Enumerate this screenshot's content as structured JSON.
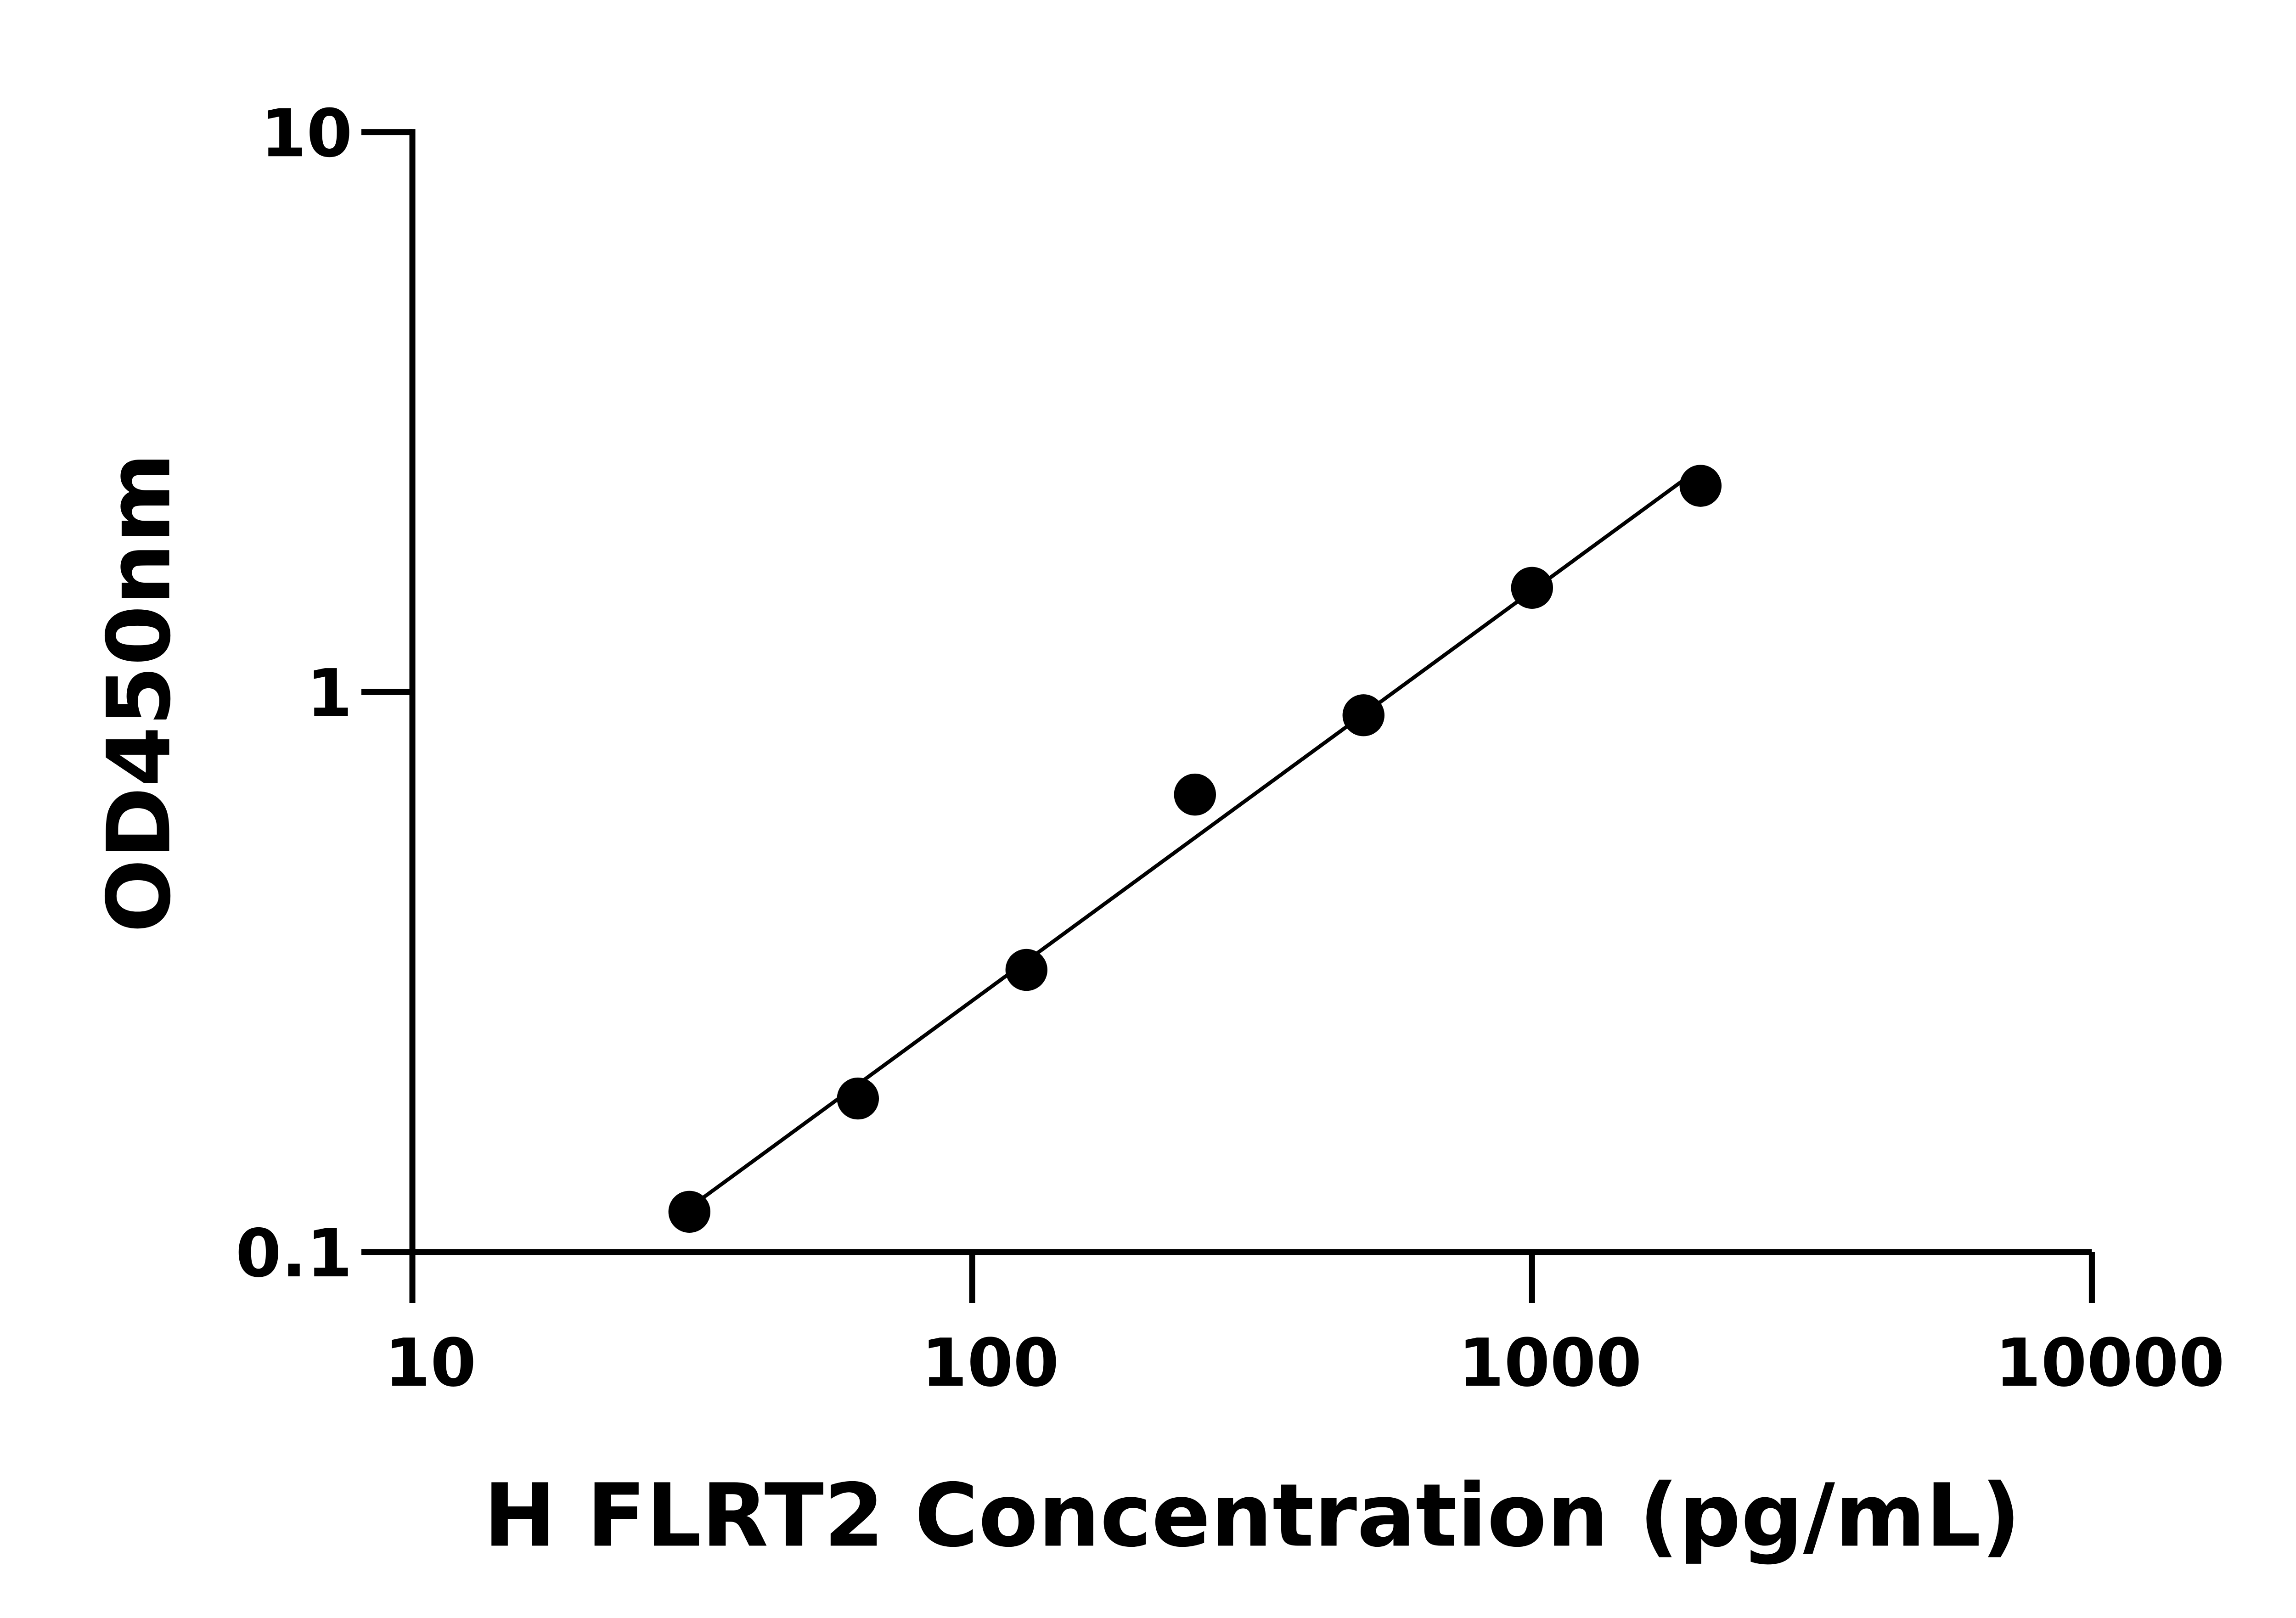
{
  "chart_data": {
    "type": "scatter",
    "x_label": "H FLRT2 Concentration (pg/mL)",
    "y_label": "OD450nm",
    "x": [
      31.25,
      62.5,
      125,
      250,
      500,
      1000,
      2000
    ],
    "series": [
      {
        "color": "#000000",
        "values": [
          0.118,
          0.188,
          0.319,
          0.656,
          0.909,
          1.535,
          2.335
        ]
      }
    ],
    "xlim": [
      10,
      10000
    ],
    "xticks": [
      10,
      100,
      1000,
      10000
    ],
    "ylim": [
      0.1,
      10
    ],
    "yticks": [
      0.1,
      1,
      10
    ],
    "xscale": "log",
    "yscale": "log",
    "fit_line": true
  }
}
